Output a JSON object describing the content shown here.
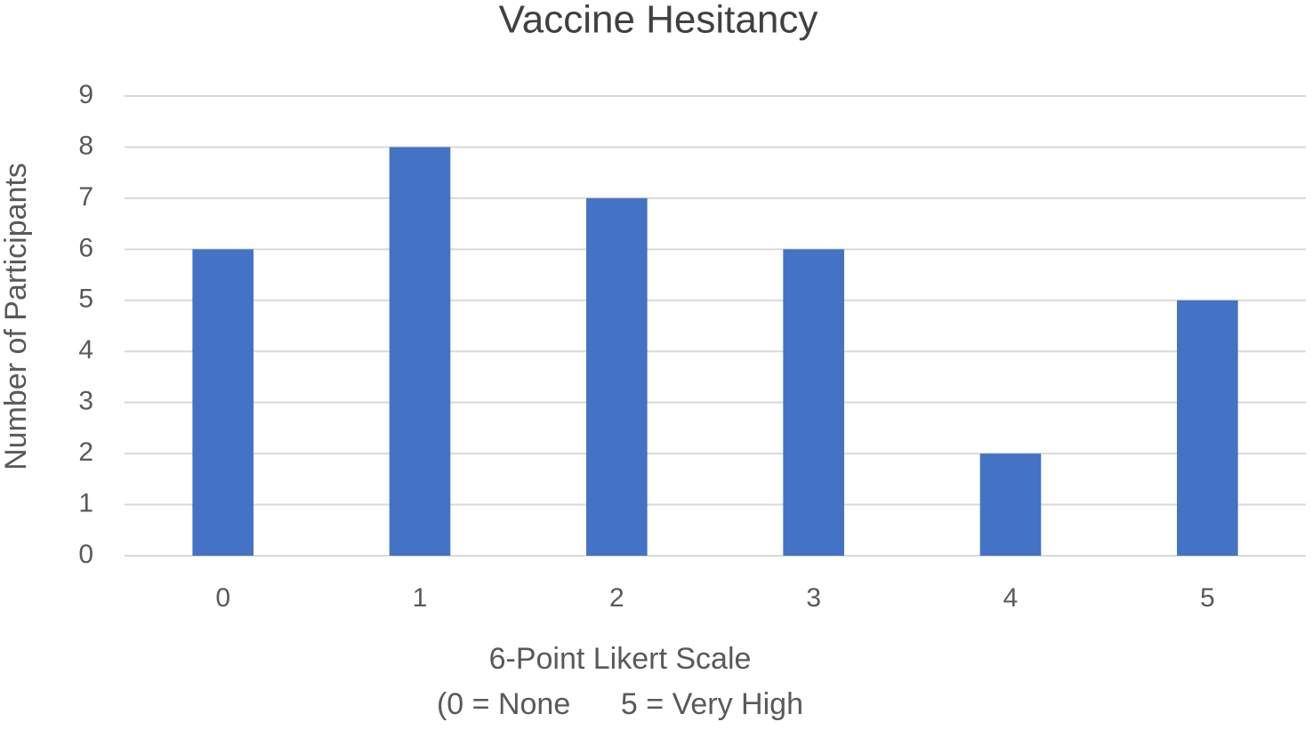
{
  "chart_data": {
    "type": "bar",
    "title": "Vaccine Hesitancy",
    "y_label": "Number of Participants",
    "x_label": [
      "6-Point Likert Scale",
      "(0 = None      5 = Very High"
    ],
    "categories": [
      "0",
      "1",
      "2",
      "3",
      "4",
      "5"
    ],
    "values": [
      6,
      8,
      7,
      6,
      2,
      5
    ],
    "color": "#4472c4",
    "ylim": [
      0,
      9
    ],
    "yticks": [
      0,
      1,
      2,
      3,
      4,
      5,
      6,
      7,
      8,
      9
    ],
    "grid": true
  }
}
